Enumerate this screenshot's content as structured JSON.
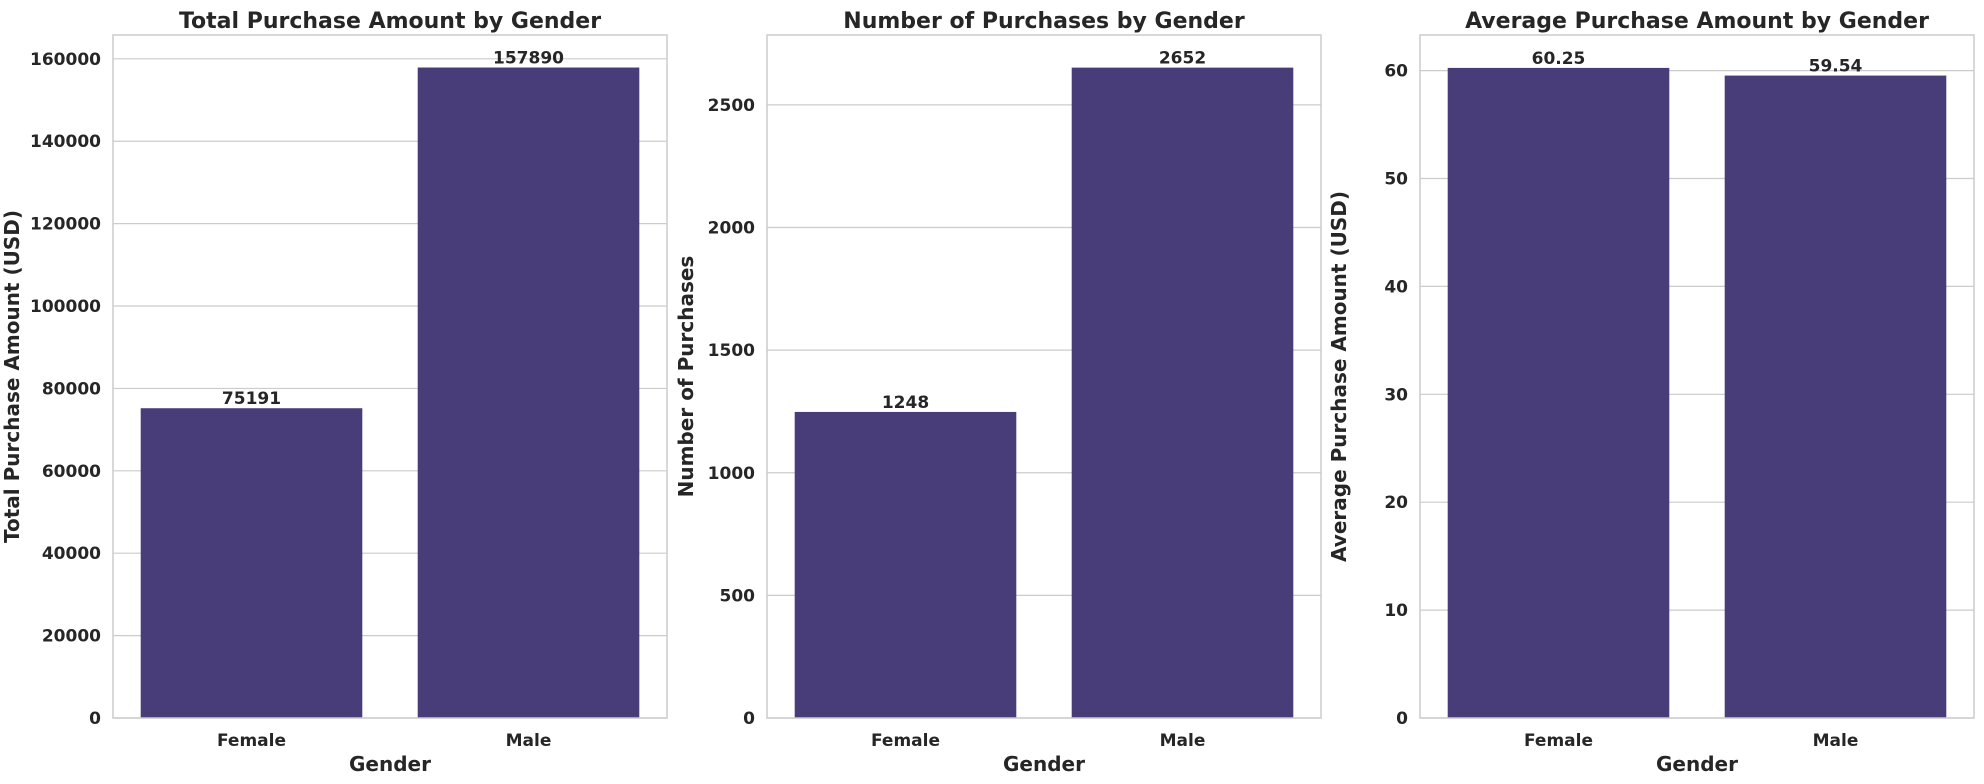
{
  "chart_data": [
    {
      "type": "bar",
      "title": "Total Purchase Amount by Gender",
      "xlabel": "Gender",
      "ylabel": "Total Purchase Amount (USD)",
      "categories": [
        "Female",
        "Male"
      ],
      "values": [
        75191,
        157890
      ],
      "value_labels": [
        "75191",
        "157890"
      ],
      "ylim": [
        0,
        165784
      ],
      "yticks": [
        0,
        20000,
        40000,
        60000,
        80000,
        100000,
        120000,
        140000,
        160000
      ],
      "grid": "horizontal",
      "bar_color": "#483d78"
    },
    {
      "type": "bar",
      "title": "Number of Purchases by Gender",
      "xlabel": "Gender",
      "ylabel": "Number of Purchases",
      "categories": [
        "Female",
        "Male"
      ],
      "values": [
        1248,
        2652
      ],
      "value_labels": [
        "1248",
        "2652"
      ],
      "ylim": [
        0,
        2785
      ],
      "yticks": [
        0,
        500,
        1000,
        1500,
        2000,
        2500
      ],
      "grid": "horizontal",
      "bar_color": "#483d78"
    },
    {
      "type": "bar",
      "title": "Average Purchase Amount by Gender",
      "xlabel": "Gender",
      "ylabel": "Average Purchase Amount (USD)",
      "categories": [
        "Female",
        "Male"
      ],
      "values": [
        60.25,
        59.54
      ],
      "value_labels": [
        "60.25",
        "59.54"
      ],
      "ylim": [
        0,
        63.3
      ],
      "yticks": [
        0,
        10,
        20,
        30,
        40,
        50,
        60
      ],
      "grid": "horizontal",
      "bar_color": "#483d78"
    }
  ]
}
